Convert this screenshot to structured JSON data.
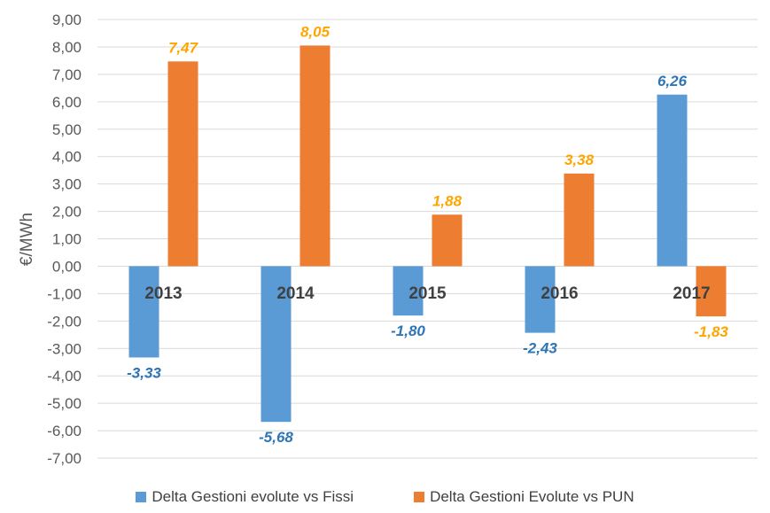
{
  "chart_data": {
    "type": "bar",
    "ylabel": "€/MWh",
    "categories": [
      "2013",
      "2014",
      "2015",
      "2016",
      "2017"
    ],
    "ylim": [
      -7,
      9
    ],
    "yticks": [
      9,
      8,
      7,
      6,
      5,
      4,
      3,
      2,
      1,
      0,
      -1,
      -2,
      -3,
      -4,
      -5,
      -6,
      -7
    ],
    "ytick_labels": [
      "9,00",
      "8,00",
      "7,00",
      "6,00",
      "5,00",
      "4,00",
      "3,00",
      "2,00",
      "1,00",
      "0,00",
      "-1,00",
      "-2,00",
      "-3,00",
      "-4,00",
      "-5,00",
      "-6,00",
      "-7,00"
    ],
    "grid": true,
    "legend_position": "bottom",
    "series": [
      {
        "name": "Delta Gestioni evolute vs Fissi",
        "color": "#5b9bd5",
        "label_color": "#2e75b6",
        "values": [
          -3.33,
          -5.68,
          -1.8,
          -2.43,
          6.26
        ],
        "labels": [
          "-3,33",
          "-5,68",
          "-1,80",
          "-2,43",
          "6,26"
        ]
      },
      {
        "name": "Delta Gestioni Evolute vs PUN",
        "color": "#ed7d31",
        "label_color": "#ffa500",
        "values": [
          7.47,
          8.05,
          1.88,
          3.38,
          -1.83
        ],
        "labels": [
          "7,47",
          "8,05",
          "1,88",
          "3,38",
          "-1,83"
        ]
      }
    ]
  }
}
